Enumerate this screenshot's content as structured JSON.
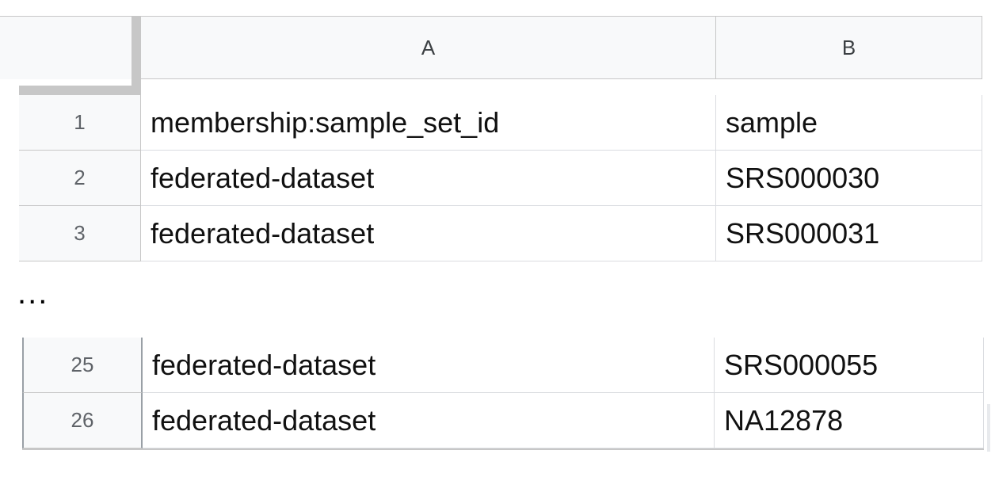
{
  "columns": [
    {
      "label": "A"
    },
    {
      "label": "B"
    }
  ],
  "top_rows": [
    {
      "num": "1",
      "a": "membership:sample_set_id",
      "b": "sample"
    },
    {
      "num": "2",
      "a": "federated-dataset",
      "b": "SRS000030"
    },
    {
      "num": "3",
      "a": "federated-dataset",
      "b": "SRS000031"
    }
  ],
  "separator": "...",
  "bottom_rows": [
    {
      "num": "25",
      "a": "federated-dataset",
      "b": "SRS000055"
    },
    {
      "num": "26",
      "a": "federated-dataset",
      "b": "NA12878"
    }
  ]
}
